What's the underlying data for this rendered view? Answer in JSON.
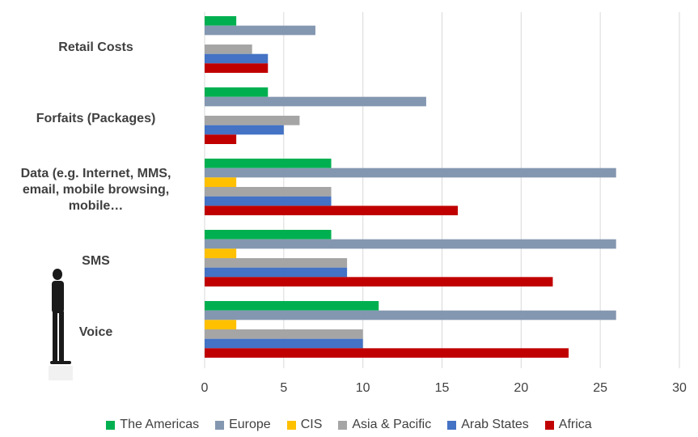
{
  "chart_data": {
    "type": "hbar",
    "categories": [
      "Retail Costs",
      "Forfaits (Packages)",
      "Data (e.g. Internet, MMS, email, mobile browsing, mobile…",
      "SMS",
      "Voice"
    ],
    "series": [
      {
        "name": "The Americas",
        "color": "#00b050",
        "values": [
          2,
          4,
          8,
          8,
          11
        ]
      },
      {
        "name": "Europe",
        "color": "#8497b0",
        "values": [
          7,
          14,
          26,
          26,
          26
        ]
      },
      {
        "name": "CIS",
        "color": "#ffc000",
        "values": [
          0,
          0,
          2,
          2,
          2
        ]
      },
      {
        "name": "Asia & Pacific",
        "color": "#a5a5a5",
        "values": [
          3,
          6,
          8,
          9,
          10
        ]
      },
      {
        "name": "Arab States",
        "color": "#4472c4",
        "values": [
          4,
          5,
          8,
          9,
          10
        ]
      },
      {
        "name": "Africa",
        "color": "#c00000",
        "values": [
          4,
          2,
          16,
          22,
          23
        ]
      }
    ],
    "xlim": [
      0,
      30
    ],
    "xticks": [
      0,
      5,
      10,
      15,
      20,
      25,
      30
    ],
    "grid": true,
    "legend": "bottom"
  }
}
